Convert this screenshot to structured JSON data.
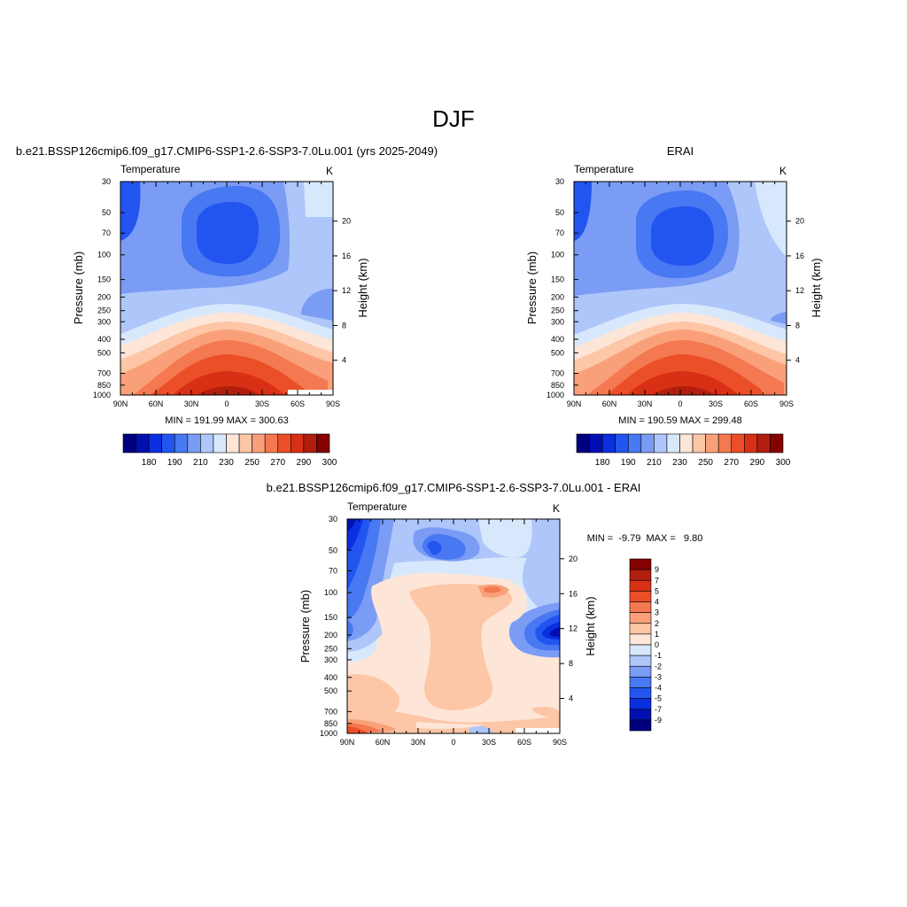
{
  "page": {
    "title": "DJF"
  },
  "chart_data": [
    {
      "type": "heatmap",
      "title": "b.e21.BSSP126cmip6.f09_g17.CMIP6-SSP1-2.6-SSP3-7.0Lu.001 (yrs 2025-2049)",
      "left_label": "Temperature",
      "units": "K",
      "xlabel": "",
      "ylabel": "Pressure (mb)",
      "ylabel_right": "Height (km)",
      "x_ticks": [
        "90N",
        "60N",
        "30N",
        "0",
        "30S",
        "60S",
        "90S"
      ],
      "x_tick_values": [
        90,
        60,
        30,
        0,
        -30,
        -60,
        -90
      ],
      "y_ticks": [
        "30",
        "50",
        "70",
        "100",
        "150",
        "200",
        "250",
        "300",
        "400",
        "500",
        "700",
        "850",
        "1000"
      ],
      "y_tick_values": [
        30,
        50,
        70,
        100,
        150,
        200,
        250,
        300,
        400,
        500,
        700,
        850,
        1000
      ],
      "height_ticks": [
        "4",
        "8",
        "12",
        "16",
        "20"
      ],
      "height_tick_values": [
        4,
        8,
        12,
        16,
        20
      ],
      "ylim": [
        1000,
        30
      ],
      "xlim": [
        90,
        -90
      ],
      "stats": "MIN = 191.99  MAX = 300.63",
      "min": 191.99,
      "max": 300.63,
      "colorbar": {
        "labels": [
          "180",
          "190",
          "210",
          "230",
          "250",
          "270",
          "290",
          "300"
        ],
        "colors": [
          "#00007f",
          "#0010b0",
          "#0a2fe0",
          "#2255f0",
          "#4878f2",
          "#7a9cf5",
          "#aec6fa",
          "#d8e8fc",
          "#fde6d8",
          "#fdc6a6",
          "#f9a07a",
          "#f47850",
          "#eb4f28",
          "#d83014",
          "#b21e0e",
          "#850000"
        ]
      }
    },
    {
      "type": "heatmap",
      "title": "ERAI",
      "left_label": "Temperature",
      "units": "K",
      "xlabel": "",
      "ylabel": "Pressure (mb)",
      "ylabel_right": "Height (km)",
      "x_ticks": [
        "90N",
        "60N",
        "30N",
        "0",
        "30S",
        "60S",
        "90S"
      ],
      "x_tick_values": [
        90,
        60,
        30,
        0,
        -30,
        -60,
        -90
      ],
      "y_ticks": [
        "30",
        "50",
        "70",
        "100",
        "150",
        "200",
        "250",
        "300",
        "400",
        "500",
        "700",
        "850",
        "1000"
      ],
      "y_tick_values": [
        30,
        50,
        70,
        100,
        150,
        200,
        250,
        300,
        400,
        500,
        700,
        850,
        1000
      ],
      "height_ticks": [
        "4",
        "8",
        "12",
        "16",
        "20"
      ],
      "height_tick_values": [
        4,
        8,
        12,
        16,
        20
      ],
      "ylim": [
        1000,
        30
      ],
      "xlim": [
        90,
        -90
      ],
      "stats": "MIN = 190.59  MAX = 299.48",
      "min": 190.59,
      "max": 299.48,
      "colorbar": {
        "labels": [
          "180",
          "190",
          "210",
          "230",
          "250",
          "270",
          "290",
          "300"
        ],
        "colors": [
          "#00007f",
          "#0010b0",
          "#0a2fe0",
          "#2255f0",
          "#4878f2",
          "#7a9cf5",
          "#aec6fa",
          "#d8e8fc",
          "#fde6d8",
          "#fdc6a6",
          "#f9a07a",
          "#f47850",
          "#eb4f28",
          "#d83014",
          "#b21e0e",
          "#850000"
        ]
      }
    },
    {
      "type": "heatmap",
      "title": "b.e21.BSSP126cmip6.f09_g17.CMIP6-SSP1-2.6-SSP3-7.0Lu.001 - ERAI",
      "left_label": "Temperature",
      "units": "K",
      "xlabel": "",
      "ylabel": "Pressure (mb)",
      "ylabel_right": "Height (km)",
      "x_ticks": [
        "90N",
        "60N",
        "30N",
        "0",
        "30S",
        "60S",
        "90S"
      ],
      "x_tick_values": [
        90,
        60,
        30,
        0,
        -30,
        -60,
        -90
      ],
      "y_ticks": [
        "30",
        "50",
        "70",
        "100",
        "150",
        "200",
        "250",
        "300",
        "400",
        "500",
        "700",
        "850",
        "1000"
      ],
      "y_tick_values": [
        30,
        50,
        70,
        100,
        150,
        200,
        250,
        300,
        400,
        500,
        700,
        850,
        1000
      ],
      "height_ticks": [
        "4",
        "8",
        "12",
        "16",
        "20"
      ],
      "height_tick_values": [
        4,
        8,
        12,
        16,
        20
      ],
      "ylim": [
        1000,
        30
      ],
      "xlim": [
        90,
        -90
      ],
      "stats": "MIN =  -9.79  MAX =   9.80",
      "min": -9.79,
      "max": 9.8,
      "colorbar": {
        "labels": [
          "9",
          "7",
          "5",
          "4",
          "3",
          "2",
          "1",
          "0",
          "-1",
          "-2",
          "-3",
          "-4",
          "-5",
          "-7",
          "-9"
        ],
        "colors": [
          "#850000",
          "#b21e0e",
          "#d83014",
          "#eb4f28",
          "#f47850",
          "#f9a07a",
          "#fdc6a6",
          "#fde6d8",
          "#d8e8fc",
          "#aec6fa",
          "#7a9cf5",
          "#4878f2",
          "#2255f0",
          "#0a2fe0",
          "#0010b0",
          "#00007f"
        ]
      }
    }
  ]
}
